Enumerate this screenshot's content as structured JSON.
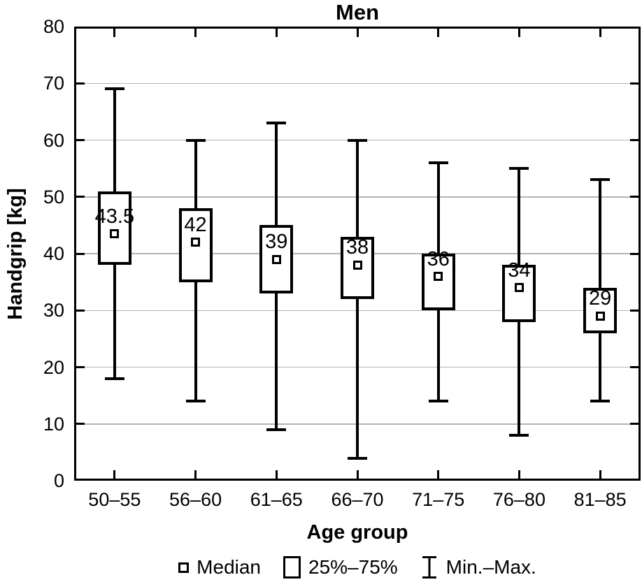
{
  "figure": {
    "title": "Men",
    "xlabel": "Age group",
    "ylabel": "Handgrip [kg]"
  },
  "chart_data": {
    "type": "box",
    "title": "Men",
    "xlabel": "Age group",
    "ylabel": "Handgrip [kg]",
    "ylim": [
      0,
      80
    ],
    "yticks": [
      0,
      10,
      20,
      30,
      40,
      50,
      60,
      70,
      80
    ],
    "grid": "horizontal",
    "legend_position": "bottom-center",
    "categories": [
      "50–55",
      "56–60",
      "61–65",
      "66–70",
      "71–75",
      "76–80",
      "81–85"
    ],
    "series": [
      {
        "category": "50–55",
        "min": 18,
        "q1": 38,
        "median": 43.5,
        "q3": 51,
        "max": 69,
        "median_label": "43.5"
      },
      {
        "category": "56–60",
        "min": 14,
        "q1": 35,
        "median": 42,
        "q3": 48,
        "max": 60,
        "median_label": "42"
      },
      {
        "category": "61–65",
        "min": 9,
        "q1": 33,
        "median": 39,
        "q3": 45,
        "max": 63,
        "median_label": "39"
      },
      {
        "category": "66–70",
        "min": 4,
        "q1": 32,
        "median": 38,
        "q3": 43,
        "max": 60,
        "median_label": "38"
      },
      {
        "category": "71–75",
        "min": 14,
        "q1": 30,
        "median": 36,
        "q3": 40,
        "max": 56,
        "median_label": "36"
      },
      {
        "category": "76–80",
        "min": 8,
        "q1": 28,
        "median": 34,
        "q3": 38,
        "max": 55,
        "median_label": "34"
      },
      {
        "category": "81–85",
        "min": 14,
        "q1": 26,
        "median": 29,
        "q3": 34,
        "max": 53,
        "median_label": "29"
      }
    ],
    "legend": {
      "items": [
        {
          "icon": "median-marker-icon",
          "label": "Median"
        },
        {
          "icon": "iqr-box-icon",
          "label": "25%–75%"
        },
        {
          "icon": "minmax-whisker-icon",
          "label": "Min.–Max."
        }
      ]
    },
    "colors": {
      "line": "#000000",
      "grid": "#b3b3b3",
      "box_fill": "#ffffff",
      "background": "#ffffff"
    }
  }
}
